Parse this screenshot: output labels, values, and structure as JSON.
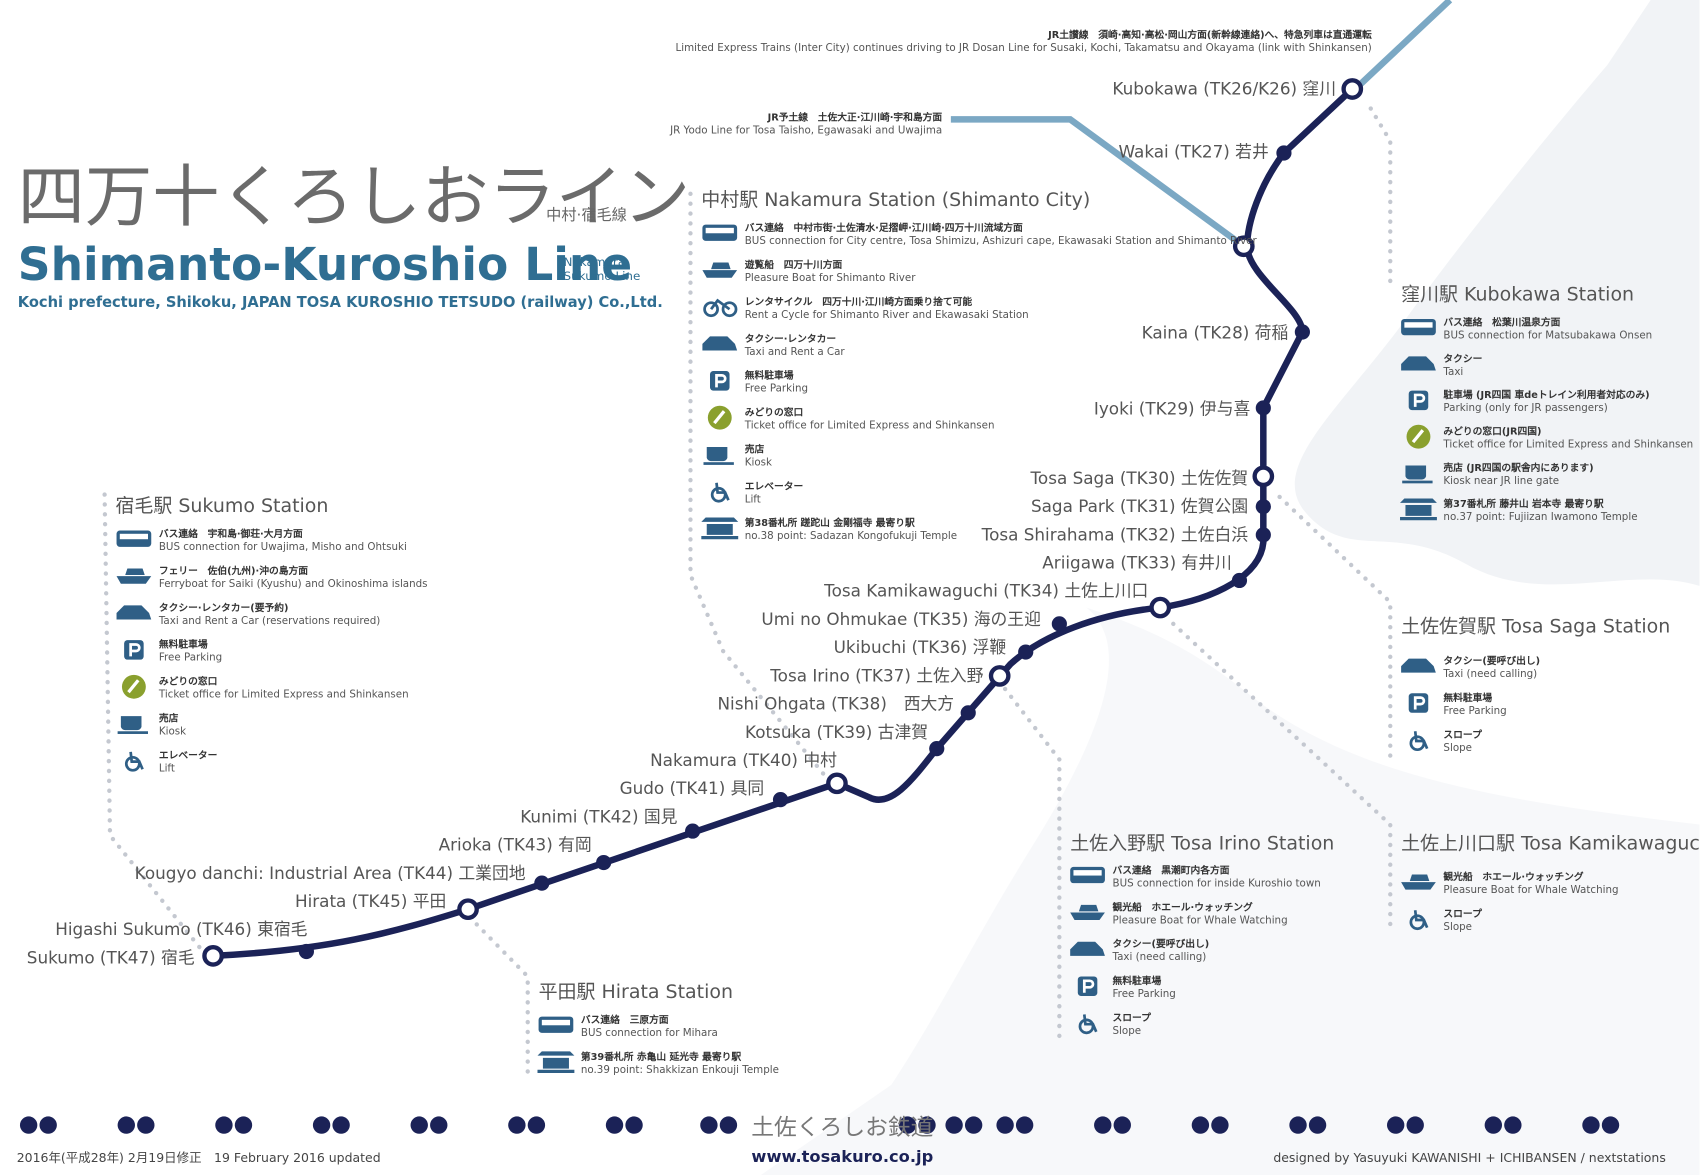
{
  "header": {
    "title_ja": "四万十くろしおライン",
    "title_ja_sub": "中村·宿毛線",
    "title_en": "Shimanto-Kuroshio Line",
    "title_en_sub": [
      "Nakamura",
      "Sukumo Line"
    ],
    "subtitle": "Kochi prefecture, Shikoku, JAPAN  TOSA KUROSHIO TETSUDO (railway) Co.,Ltd."
  },
  "connections": [
    {
      "ja": "JR土讃線　須崎·高知·高松·岡山方面(新幹線連絡)へ、特急列車は直通運転",
      "en": "Limited Express Trains (Inter City) continues driving to JR Dosan Line for Susaki, Kochi, Takamatsu and Okayama (link with Shinkansen)"
    },
    {
      "ja": "JR予土線　土佐大正·江川崎·宇和島方面",
      "en": "JR Yodo Line for Tosa Taisho, Egawasaki and Uwajima"
    }
  ],
  "stations": [
    "Kubokawa (TK26/K26) 窪川",
    "Wakai (TK27) 若井",
    "Kaina (TK28) 荷稲",
    "Iyoki (TK29) 伊与喜",
    "Tosa Saga (TK30) 土佐佐賀",
    "Saga Park (TK31) 佐賀公園",
    "Tosa Shirahama (TK32) 土佐白浜",
    "Ariigawa (TK33) 有井川",
    "Tosa Kamikawaguchi (TK34) 土佐上川口",
    "Umi no Ohmukae (TK35) 海の王迎",
    "Ukibuchi (TK36) 浮鞭",
    "Tosa Irino (TK37) 土佐入野",
    "Nishi Ohgata (TK38)　西大方",
    "Kotsuka (TK39) 古津賀",
    "Nakamura (TK40) 中村",
    "Gudo (TK41) 具同",
    "Kunimi (TK42) 国見",
    "Arioka (TK43) 有岡",
    "Kougyo danchi: Industrial Area (TK44) 工業団地",
    "Hirata (TK45) 平田",
    "Higashi Sukumo (TK46) 東宿毛",
    "Sukumo (TK47) 宿毛"
  ],
  "station_boxes": [
    {
      "title": "中村駅 Nakamura Station (Shimanto City)",
      "items": [
        {
          "ja": "バス連絡　中村市街·土佐清水·足摺岬·江川崎·四万十川流域方面",
          "en": "BUS connection for City centre, Tosa Shimizu, Ashizuri cape, Ekawasaki Station and Shimanto River"
        },
        {
          "ja": "遊覧船　四万十川方面",
          "en": "Pleasure Boat for Shimanto River"
        },
        {
          "ja": "レンタサイクル　四万十川·江川崎方面乗り捨て可能",
          "en": "Rent a Cycle for Shimanto River and Ekawasaki Station"
        },
        {
          "ja": "タクシー·レンタカー",
          "en": "Taxi and Rent a Car"
        },
        {
          "ja": "無料駐車場",
          "en": "Free Parking"
        },
        {
          "ja": "みどりの窓口",
          "en": "Ticket office for Limited Express and Shinkansen"
        },
        {
          "ja": "売店",
          "en": "Kiosk"
        },
        {
          "ja": "エレベーター",
          "en": "Lift"
        },
        {
          "ja": "第38番札所 蹉跎山 金剛福寺 最寄り駅",
          "en": "no.38 point: Sadazan Kongofukuji Temple"
        }
      ]
    },
    {
      "title": "宿毛駅 Sukumo Station",
      "items": [
        {
          "ja": "バス連絡　宇和島·御荘·大月方面",
          "en": "BUS connection for Uwajima, Misho and Ohtsuki"
        },
        {
          "ja": "フェリー　佐伯(九州)·沖の島方面",
          "en": "Ferryboat for Saiki (Kyushu) and Okinoshima islands"
        },
        {
          "ja": "タクシー·レンタカー(要予約)",
          "en": "Taxi and Rent a Car (reservations required)"
        },
        {
          "ja": "無料駐車場",
          "en": "Free Parking"
        },
        {
          "ja": "みどりの窓口",
          "en": "Ticket office for Limited Express and Shinkansen"
        },
        {
          "ja": "売店",
          "en": "Kiosk"
        },
        {
          "ja": "エレベーター",
          "en": "Lift"
        }
      ]
    },
    {
      "title": "窪川駅 Kubokawa Station",
      "items": [
        {
          "ja": "バス連絡　松葉川温泉方面",
          "en": "BUS connection for Matsubakawa Onsen"
        },
        {
          "ja": "タクシー",
          "en": "Taxi"
        },
        {
          "ja": "駐車場 (JR四国 車deトレイン利用者対応のみ)",
          "en": "Parking (only for JR passengers)"
        },
        {
          "ja": "みどりの窓口(JR四国)",
          "en": "Ticket office for Limited Express and Shinkansen"
        },
        {
          "ja": "売店 (JR四国の駅舎内にあります)",
          "en": "Kiosk near JR line gate"
        },
        {
          "ja": "第37番札所 藤井山 岩本寺 最寄り駅",
          "en": "no.37 point: Fujiizan Iwamono Temple"
        }
      ]
    },
    {
      "title": "土佐佐賀駅 Tosa Saga Station",
      "items": [
        {
          "ja": "タクシー(要呼び出し)",
          "en": "Taxi (need calling)"
        },
        {
          "ja": "無料駐車場",
          "en": "Free Parking"
        },
        {
          "ja": "スロープ",
          "en": "Slope"
        }
      ]
    },
    {
      "title": "土佐上川口駅 Tosa Kamikawaguchi Station",
      "items": [
        {
          "ja": "観光船　ホエール·ウォッチング",
          "en": "Pleasure Boat for Whale Watching"
        },
        {
          "ja": "スロープ",
          "en": "Slope"
        }
      ]
    },
    {
      "title": "土佐入野駅 Tosa Irino Station",
      "items": [
        {
          "ja": "バス連絡　黒潮町内各方面",
          "en": "BUS connection for inside Kuroshio town"
        },
        {
          "ja": "観光船　ホエール·ウォッチング",
          "en": "Pleasure Boat for Whale Watching"
        },
        {
          "ja": "タクシー(要呼び出し)",
          "en": "Taxi (need calling)"
        },
        {
          "ja": "無料駐車場",
          "en": "Free Parking"
        },
        {
          "ja": "スロープ",
          "en": "Slope"
        }
      ]
    },
    {
      "title": "平田駅 Hirata Station",
      "items": [
        {
          "ja": "バス連絡　三原方面",
          "en": "BUS connection for Mihara"
        },
        {
          "ja": "第39番札所 赤亀山 延光寺 最寄り駅",
          "en": "no.39 point: Shakkizan Enkouji Temple"
        }
      ]
    }
  ],
  "footer": {
    "logo": "土佐くろしお鉄道",
    "url": "www.tosakuro.co.jp",
    "updated": "2016年(平成28年) 2月19日修正　19 February 2016 updated",
    "credit": "designed by Yasuyuki KAWANISHI + ICHIBANSEN / nextstations"
  }
}
